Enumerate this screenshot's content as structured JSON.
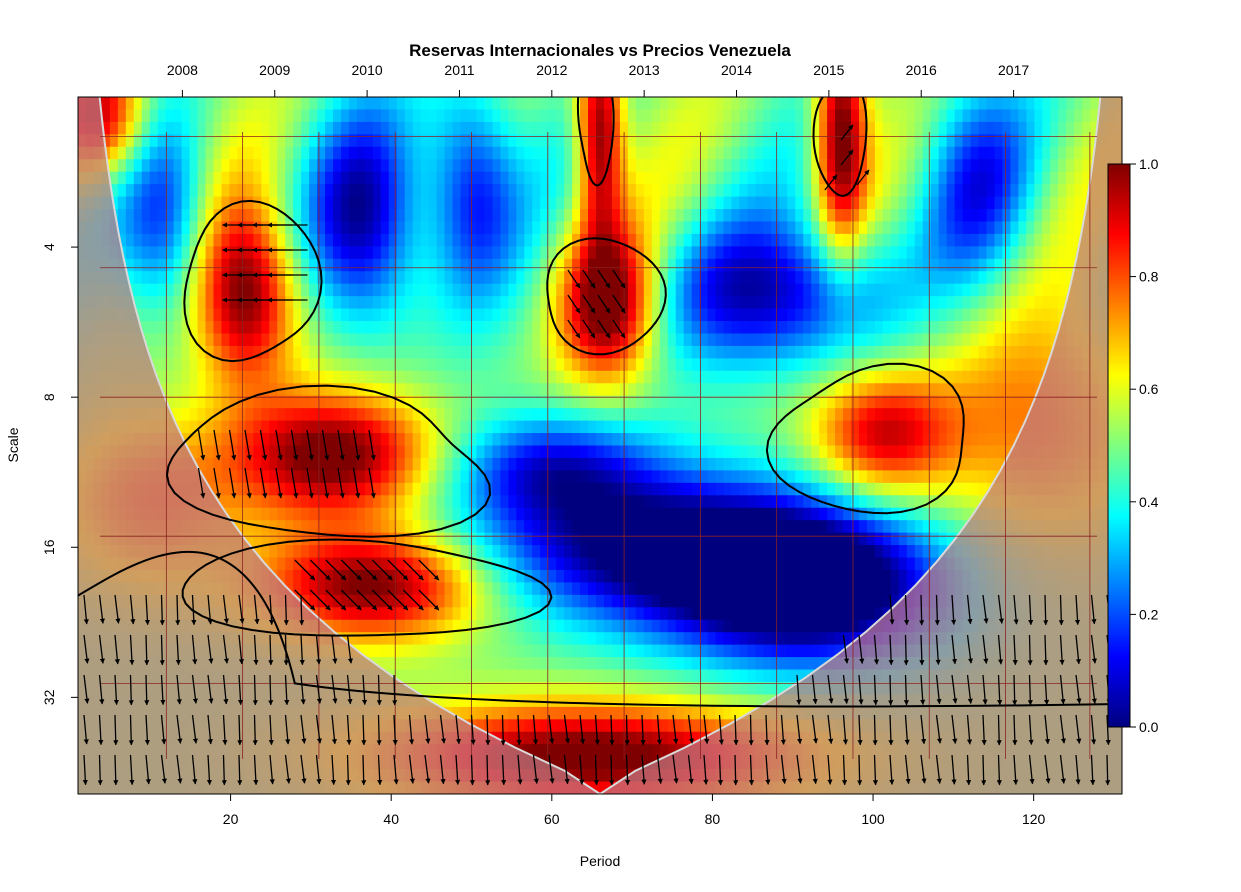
{
  "chart_data": {
    "type": "heatmap",
    "title": "Reservas Internacionales vs Precios Venezuela",
    "xlabel": "Period",
    "ylabel": "Scale",
    "xlim": [
      1,
      131
    ],
    "ylim": [
      2,
      50
    ],
    "y_scale": "log2",
    "x_ticks": [
      20,
      40,
      60,
      80,
      100,
      120
    ],
    "y_ticks": [
      4,
      8,
      16,
      32
    ],
    "top_axis": {
      "labels": [
        "2008",
        "2009",
        "2010",
        "2011",
        "2012",
        "2013",
        "2014",
        "2015",
        "2016",
        "2017"
      ],
      "positions": [
        14,
        25.5,
        37,
        48.5,
        60,
        71.5,
        83,
        94.5,
        106,
        117.5
      ]
    },
    "colorbar": {
      "range": [
        0,
        1
      ],
      "ticks": [
        "0.0",
        "0.2",
        "0.4",
        "0.6",
        "0.8",
        "1.0"
      ],
      "colormap": [
        "#00007f",
        "#0000ff",
        "#007fff",
        "#00ffff",
        "#7fff7f",
        "#ffff00",
        "#ff7f00",
        "#ff0000",
        "#7f0000"
      ]
    },
    "coherence_regions": [
      {
        "name": "low-scale red bands",
        "x": [
          0,
          8
        ],
        "scale": [
          2,
          2.4
        ],
        "value": 0.85
      },
      {
        "name": "2009 high coherence",
        "x": [
          22,
          27
        ],
        "scale": [
          4.6,
          4.8
        ],
        "value": 0.95
      },
      {
        "name": "2013 high coherence",
        "x": [
          66,
          69
        ],
        "scale": [
          4.8,
          5.0
        ],
        "value": 0.93
      },
      {
        "name": "2012 short period",
        "x": [
          64,
          66
        ],
        "scale": [
          2.2,
          2.5
        ],
        "value": 0.9
      },
      {
        "name": "2015 short period",
        "x": [
          95,
          97
        ],
        "scale": [
          2.1,
          2.7
        ],
        "value": 0.93
      },
      {
        "name": "2015-2016 mid period",
        "x": [
          97,
          106
        ],
        "scale": [
          8.4,
          10.0
        ],
        "value": 0.78
      },
      {
        "name": "2008-2010 long period",
        "x": [
          30,
          38
        ],
        "scale": [
          10.0,
          11.0
        ],
        "value": 0.97
      },
      {
        "name": "2009-2011 band",
        "x": [
          30,
          40
        ],
        "scale": [
          18.0,
          20.0
        ],
        "value": 0.95
      },
      {
        "name": "bottom band",
        "x": [
          60,
          70
        ],
        "scale": [
          36,
          44
        ],
        "value": 0.97
      },
      {
        "name": "mid blue trough",
        "x": [
          60,
          100
        ],
        "scale": [
          13,
          24
        ],
        "value": 0.05
      },
      {
        "name": "upper blue",
        "x": [
          80,
          100
        ],
        "scale": [
          4.2,
          6.0
        ],
        "value": 0.1
      }
    ]
  }
}
